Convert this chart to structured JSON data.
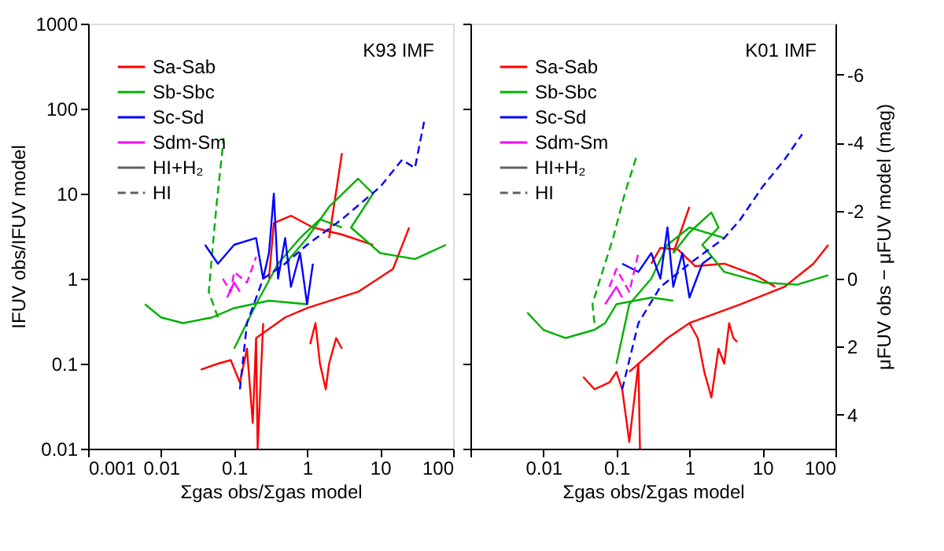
{
  "chart_data": [
    {
      "type": "line",
      "xlabel": "Σgas obs/Σgas model",
      "ylabel": "IFUV obs/IFUV model",
      "annotations": [
        "K93 IMF"
      ],
      "log": "xy",
      "grid": false,
      "legend": "top left",
      "xlim": [
        0.001,
        100
      ],
      "ylim": [
        0.01,
        1000
      ],
      "xticks": [
        0.001,
        0.01,
        0.1,
        1,
        10,
        100
      ],
      "yticks": [
        0.01,
        0.1,
        1,
        10,
        100,
        1000
      ],
      "series": [
        {
          "name": "Sa-Sab",
          "color": "#ff0000",
          "line_style": "solid",
          "x": [
            0.035,
            0.06,
            0.09,
            0.12,
            0.15,
            0.18,
            0.2,
            0.21,
            0.25
          ],
          "values": [
            0.085,
            0.1,
            0.11,
            0.06,
            0.15,
            0.02,
            0.2,
            0.01,
            0.3
          ]
        },
        {
          "color": "#ff0000",
          "line_style": "solid",
          "x": [
            1.1,
            1.3,
            1.5,
            1.8,
            2,
            2.5,
            3
          ],
          "values": [
            0.17,
            0.3,
            0.1,
            0.05,
            0.1,
            0.2,
            0.15
          ]
        },
        {
          "color": "#ff0000",
          "line_style": "solid",
          "x": [
            0.2,
            0.5,
            1,
            5,
            15,
            25
          ],
          "values": [
            0.2,
            0.35,
            0.45,
            0.7,
            1.3,
            4
          ]
        },
        {
          "color": "#ff0000",
          "line_style": "solid",
          "x": [
            0.3,
            0.35,
            0.6,
            1.2,
            3,
            8
          ],
          "values": [
            1,
            4.5,
            5.5,
            4,
            3.3,
            2.5
          ]
        },
        {
          "color": "#ff0000",
          "line_style": "solid",
          "x": [
            2,
            3
          ],
          "values": [
            3,
            30
          ]
        },
        {
          "name": "Sb-Sbc",
          "color": "#00b000",
          "line_style": "solid",
          "x": [
            0.006,
            0.01,
            0.02,
            0.05,
            0.1,
            0.3,
            1
          ],
          "values": [
            0.5,
            0.35,
            0.3,
            0.35,
            0.45,
            0.55,
            0.5
          ]
        },
        {
          "color": "#00b000",
          "line_style": "solid",
          "x": [
            0.5,
            1,
            2,
            5,
            8,
            4,
            10,
            30,
            80
          ],
          "values": [
            1.5,
            3,
            7,
            15,
            10,
            4,
            2,
            1.7,
            2.5
          ]
        },
        {
          "color": "#00b000",
          "line_style": "solid",
          "x": [
            0.1,
            0.2,
            0.4,
            0.8,
            1.5,
            3
          ],
          "values": [
            0.15,
            0.5,
            1.5,
            3,
            5,
            4
          ]
        },
        {
          "color": "#00b000",
          "line_style": "dashed",
          "x": [
            0.06,
            0.045,
            0.05,
            0.058,
            0.065,
            0.072
          ],
          "values": [
            0.35,
            0.7,
            2,
            8,
            20,
            45
          ]
        },
        {
          "name": "Sc-Sd",
          "color": "#0000ff",
          "line_style": "solid",
          "x": [
            0.04,
            0.06,
            0.1,
            0.2,
            0.25,
            0.3,
            0.35,
            0.4,
            0.5,
            0.6,
            0.8,
            1,
            1.2
          ],
          "values": [
            2.5,
            1.5,
            2.5,
            3,
            1,
            2,
            10,
            1,
            3,
            0.8,
            2,
            0.5,
            1.5
          ]
        },
        {
          "color": "#0000ff",
          "line_style": "dashed",
          "x": [
            0.12,
            0.15,
            0.25,
            0.5,
            1,
            3,
            10,
            20,
            30,
            40
          ],
          "values": [
            0.05,
            0.3,
            1,
            1.5,
            2.5,
            5,
            12,
            25,
            20,
            70
          ]
        },
        {
          "name": "Sdm-Sm",
          "color": "#ff00ff",
          "line_style": "solid",
          "x": [
            0.08,
            0.1,
            0.12
          ],
          "values": [
            0.6,
            0.9,
            0.7
          ]
        },
        {
          "color": "#ff00ff",
          "line_style": "dashed",
          "x": [
            0.07,
            0.09,
            0.1,
            0.15,
            0.2
          ],
          "values": [
            1.0,
            0.7,
            1.2,
            0.9,
            1.8
          ]
        },
        {
          "name": "HI+H₂",
          "color": "#606060",
          "line_style": "solid"
        },
        {
          "name": "HI",
          "color": "#606060",
          "line_style": "dashed"
        }
      ]
    },
    {
      "type": "line",
      "xlabel": "Σgas obs/Σgas model",
      "y2label": "μFUV obs − μFUV model (mag)",
      "annotations": [
        "K01 IMF"
      ],
      "log": "xy",
      "grid": false,
      "legend": "top left",
      "tick_labels": "x",
      "xlim": [
        0.001,
        100
      ],
      "ylim": [
        0.01,
        1000
      ],
      "xticks": [
        {
          "value": 0.001,
          "label": null
        },
        0.01,
        0.1,
        1,
        10,
        100
      ],
      "yticks": [
        0.01,
        0.1,
        1,
        10,
        100,
        1000
      ],
      "y2lim": [
        5,
        -7.5
      ],
      "y2ticks": [
        {
          "value": -6,
          "label": "-6"
        },
        {
          "value": -4,
          "label": "-4"
        },
        {
          "value": -2,
          "label": "-2"
        },
        {
          "value": 0,
          "label": "0"
        },
        {
          "value": 2,
          "label": "2"
        },
        {
          "value": 4,
          "label": "4"
        }
      ],
      "series": [
        {
          "name": "Sa-Sab",
          "color": "#ff0000",
          "line_style": "solid",
          "x": [
            0.035,
            0.05,
            0.08,
            0.1,
            0.12,
            0.15,
            0.2,
            0.21
          ],
          "values": [
            0.07,
            0.05,
            0.06,
            0.08,
            0.05,
            0.012,
            0.1,
            0.01
          ]
        },
        {
          "color": "#ff0000",
          "line_style": "solid",
          "x": [
            1,
            1.3,
            1.6,
            2,
            2.5,
            3,
            3.5,
            4,
            4.5
          ],
          "values": [
            0.3,
            0.2,
            0.08,
            0.04,
            0.15,
            0.1,
            0.3,
            0.2,
            0.18
          ]
        },
        {
          "color": "#ff0000",
          "line_style": "solid",
          "x": [
            0.15,
            0.5,
            1,
            5,
            20,
            50,
            80
          ],
          "values": [
            0.08,
            0.2,
            0.3,
            0.5,
            0.8,
            1.5,
            2.5
          ]
        },
        {
          "color": "#ff0000",
          "line_style": "solid",
          "x": [
            0.3,
            0.4,
            0.7,
            1.2,
            3,
            8,
            15
          ],
          "values": [
            1.5,
            2.3,
            2.2,
            1.4,
            1.5,
            1.1,
            0.8
          ]
        },
        {
          "color": "#ff0000",
          "line_style": "solid",
          "x": [
            0.6,
            1
          ],
          "values": [
            2,
            7
          ]
        },
        {
          "name": "Sb-Sbc",
          "color": "#00b000",
          "line_style": "solid",
          "x": [
            0.006,
            0.01,
            0.02,
            0.05,
            0.07,
            0.1,
            0.3,
            0.6
          ],
          "values": [
            0.4,
            0.25,
            0.2,
            0.25,
            0.3,
            0.5,
            0.6,
            0.55
          ]
        },
        {
          "color": "#00b000",
          "line_style": "solid",
          "x": [
            0.6,
            1,
            2,
            2.5,
            1.5,
            3,
            10,
            30,
            80
          ],
          "values": [
            2,
            3.5,
            6,
            4,
            2.5,
            1.2,
            0.9,
            0.85,
            1.1
          ]
        },
        {
          "color": "#00b000",
          "line_style": "solid",
          "x": [
            0.1,
            0.15,
            0.3,
            0.5,
            1,
            3
          ],
          "values": [
            0.1,
            0.5,
            1,
            2.5,
            4,
            3
          ]
        },
        {
          "color": "#00b000",
          "line_style": "dashed",
          "x": [
            0.05,
            0.047,
            0.06,
            0.09,
            0.13,
            0.19
          ],
          "values": [
            0.3,
            0.5,
            1,
            3,
            10,
            28
          ]
        },
        {
          "name": "Sc-Sd",
          "color": "#0000ff",
          "line_style": "solid",
          "x": [
            0.12,
            0.2,
            0.3,
            0.4,
            0.5,
            0.6,
            0.8,
            1,
            1.5,
            2
          ],
          "values": [
            1.5,
            1.2,
            2,
            1,
            4,
            0.8,
            2,
            0.6,
            1.5,
            1.8
          ]
        },
        {
          "color": "#0000ff",
          "line_style": "dashed",
          "x": [
            0.12,
            0.2,
            0.4,
            1,
            3,
            5,
            10,
            20,
            35
          ],
          "values": [
            0.05,
            0.3,
            0.8,
            1.5,
            3,
            5,
            12,
            25,
            50
          ]
        },
        {
          "name": "Sdm-Sm",
          "color": "#ff00ff",
          "line_style": "solid",
          "x": [
            0.07,
            0.1,
            0.12
          ],
          "values": [
            0.5,
            0.8,
            0.6
          ]
        },
        {
          "color": "#ff00ff",
          "line_style": "dashed",
          "x": [
            0.08,
            0.1,
            0.15,
            0.2
          ],
          "values": [
            0.8,
            1.3,
            0.7,
            2
          ]
        },
        {
          "name": "HI+H₂",
          "color": "#606060",
          "line_style": "solid"
        },
        {
          "name": "HI",
          "color": "#606060",
          "line_style": "dashed"
        }
      ]
    }
  ]
}
